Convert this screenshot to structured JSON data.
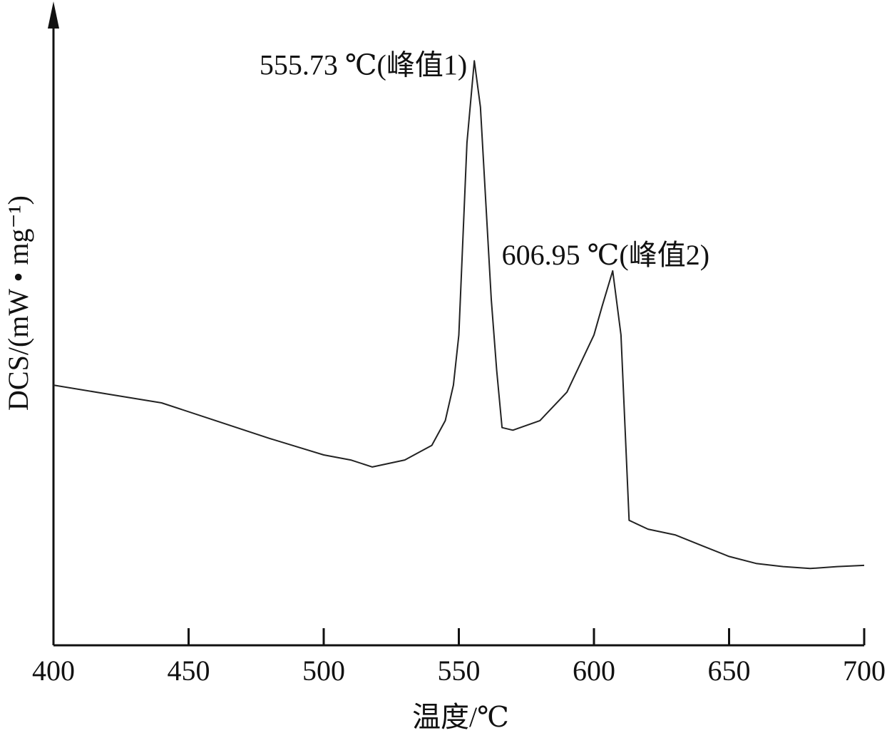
{
  "chart_data": {
    "type": "line",
    "x_label": "温度/℃",
    "y_label": "DCS/(mW • mg⁻¹)",
    "x": [
      400,
      420,
      440,
      460,
      480,
      500,
      510,
      518,
      530,
      540,
      545,
      548,
      550,
      551,
      553,
      555.73,
      558,
      562,
      564,
      566,
      570,
      580,
      590,
      600,
      603,
      606.95,
      610,
      611.5,
      613,
      620,
      630,
      640,
      650,
      660,
      670,
      680,
      690,
      700
    ],
    "y": [
      41.0,
      39.6,
      38.2,
      35.4,
      32.6,
      30.0,
      29.2,
      28.1,
      29.2,
      31.5,
      35.4,
      41.0,
      48.9,
      59.0,
      79.2,
      92.1,
      84.8,
      54.5,
      43.3,
      34.3,
      33.9,
      35.4,
      39.9,
      48.9,
      53.4,
      59.0,
      48.9,
      34.3,
      19.7,
      18.3,
      17.4,
      15.7,
      14.0,
      12.9,
      12.4,
      12.1,
      12.4,
      12.6
    ],
    "color": "#222222",
    "xlim": [
      400,
      700
    ],
    "xticks": [
      400,
      450,
      500,
      550,
      600,
      650,
      700
    ],
    "ylim": [
      0,
      100
    ],
    "grid": false,
    "annotations": [
      {
        "text": "555.73 ℃(峰值1)",
        "x": 555.73,
        "y": 92.1
      },
      {
        "text": "606.95 ℃(峰值2)",
        "x": 606.95,
        "y": 59.0
      }
    ]
  }
}
